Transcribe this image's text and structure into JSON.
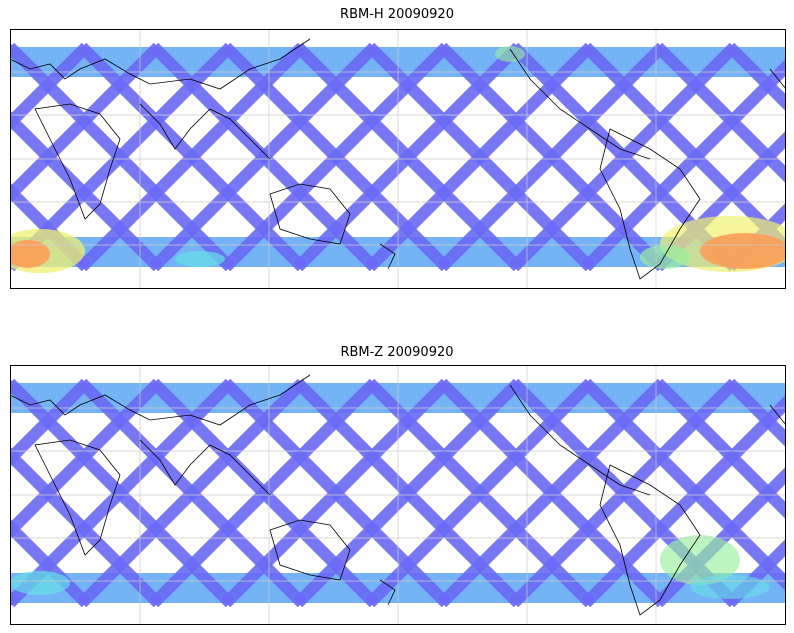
{
  "panels": [
    {
      "title": "RBM-H 20090920"
    },
    {
      "title": "RBM-Z 20090920"
    }
  ],
  "colors": {
    "track_low": "#6a6af5",
    "track_mid": "#5aa6f5",
    "track_high_cyan": "#66e0e6",
    "track_green": "#9af0a0",
    "track_yellow": "#f0f070",
    "track_orange": "#ff9a55",
    "coastline": "#000000",
    "gridline": "#cccccc"
  }
}
